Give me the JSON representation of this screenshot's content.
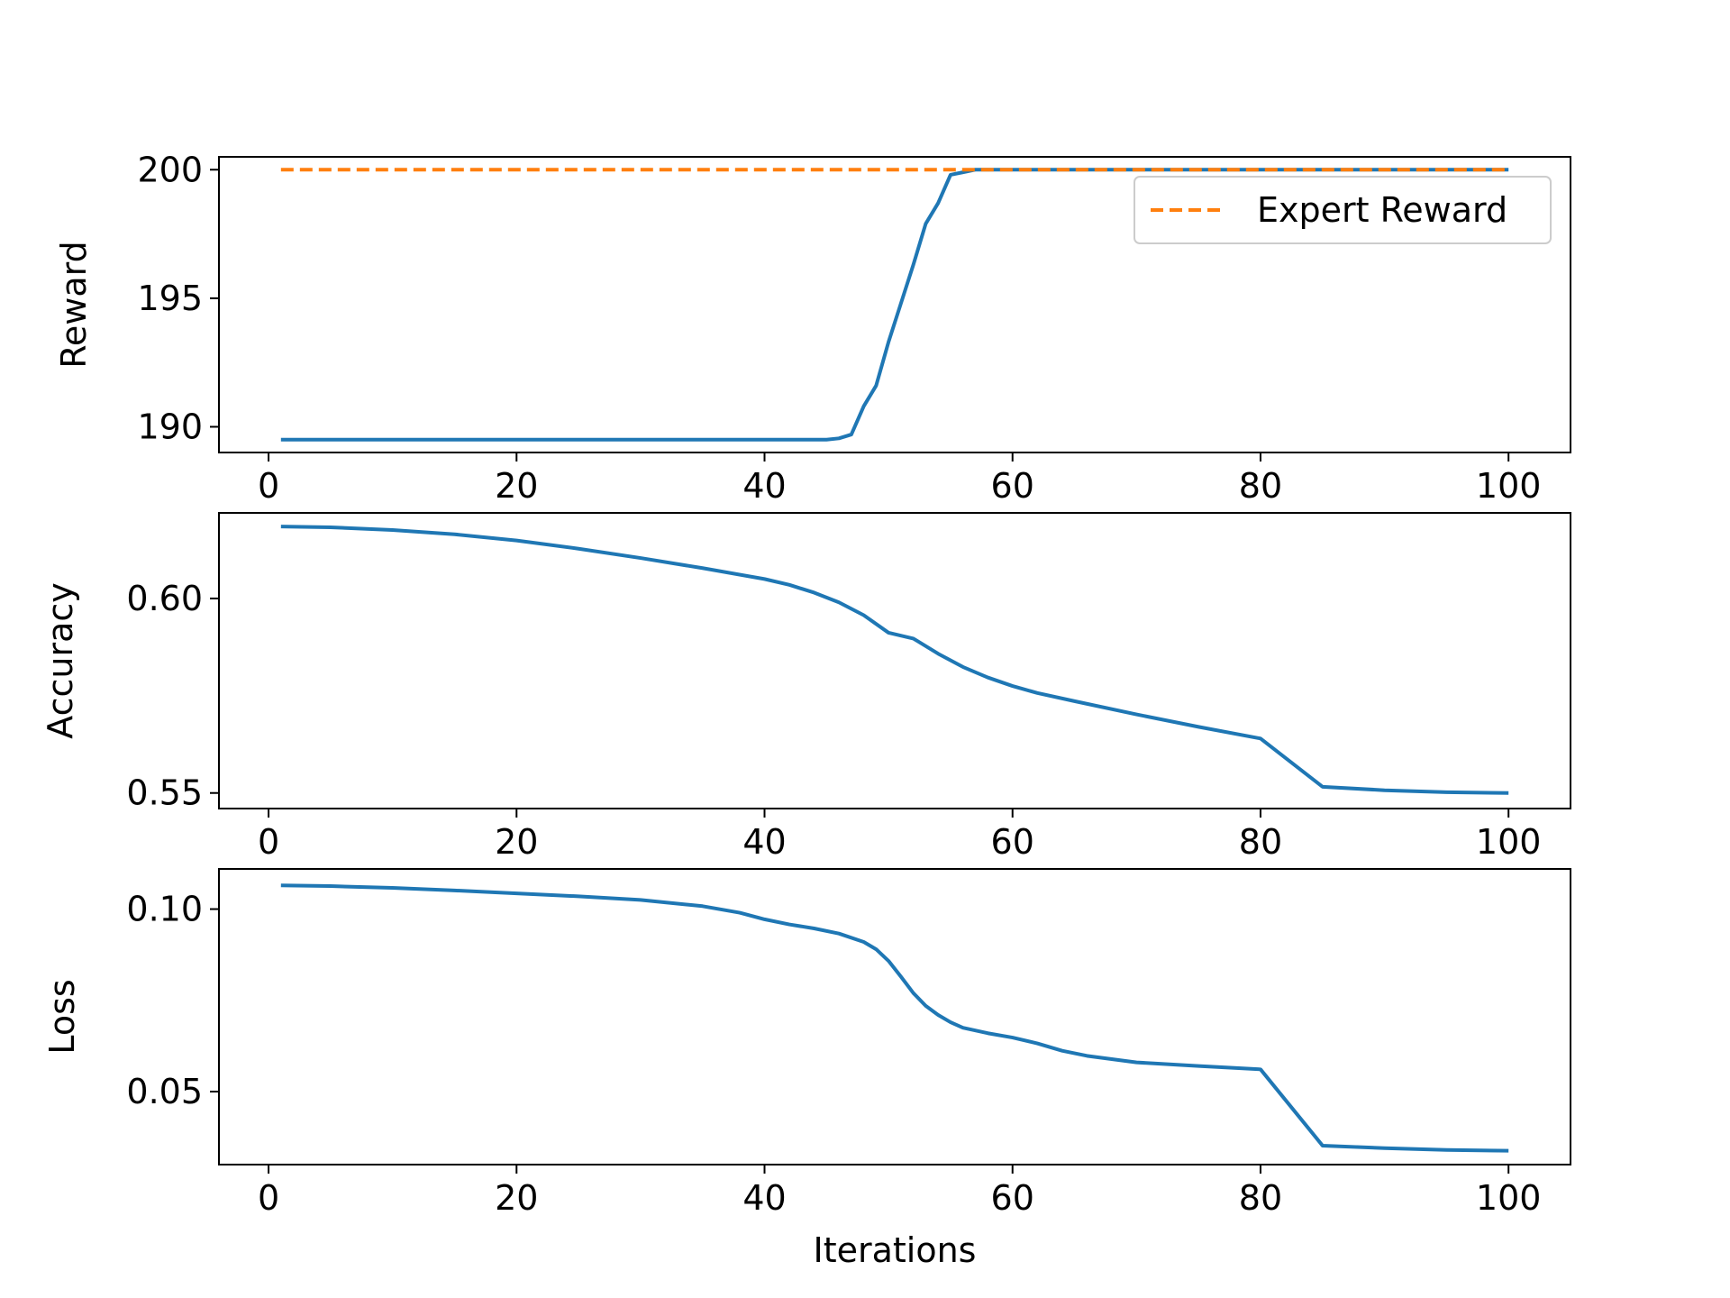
{
  "chart_data": [
    {
      "type": "line",
      "ylabel": "Reward",
      "xlim": [
        -4,
        105
      ],
      "ylim": [
        189.0,
        200.5
      ],
      "xticks": [
        0,
        20,
        40,
        60,
        80,
        100
      ],
      "xtick_labels": [
        "0",
        "20",
        "40",
        "60",
        "80",
        "100"
      ],
      "yticks": [
        190,
        195,
        200
      ],
      "ytick_labels": [
        "190",
        "195",
        "200"
      ],
      "legend_position": "upper right",
      "colors": {
        "series": "#1f77b4",
        "reference": "#ff7f0e"
      },
      "series": [
        {
          "values": {
            "x": [
              1,
              44,
              45,
              46,
              47,
              48,
              49,
              50,
              51,
              52,
              53,
              54,
              55,
              56,
              57,
              100
            ],
            "y": [
              189.5,
              189.5,
              189.5,
              189.55,
              189.7,
              190.8,
              191.6,
              193.3,
              194.8,
              196.3,
              197.9,
              198.7,
              199.8,
              199.9,
              200.0,
              200.0
            ]
          }
        },
        {
          "name": "Expert Reward",
          "style": "dashed",
          "values": {
            "x": [
              1,
              100
            ],
            "y": [
              200.0,
              200.0
            ]
          }
        }
      ]
    },
    {
      "type": "line",
      "ylabel": "Accuracy",
      "xlim": [
        -4,
        105
      ],
      "ylim": [
        0.546,
        0.622
      ],
      "xticks": [
        0,
        20,
        40,
        60,
        80,
        100
      ],
      "xtick_labels": [
        "0",
        "20",
        "40",
        "60",
        "80",
        "100"
      ],
      "yticks": [
        0.55,
        0.6
      ],
      "ytick_labels": [
        "0.55",
        "0.60"
      ],
      "colors": {
        "series": "#1f77b4"
      },
      "series": [
        {
          "values": {
            "x": [
              1,
              5,
              10,
              15,
              20,
              25,
              30,
              35,
              40,
              42,
              44,
              46,
              48,
              50,
              52,
              54,
              56,
              58,
              60,
              62,
              65,
              70,
              75,
              80,
              85,
              90,
              95,
              100
            ],
            "y": [
              0.6185,
              0.6183,
              0.6176,
              0.6165,
              0.6149,
              0.6128,
              0.6104,
              0.6078,
              0.605,
              0.6035,
              0.6015,
              0.599,
              0.5957,
              0.5912,
              0.5897,
              0.5858,
              0.5824,
              0.5797,
              0.5775,
              0.5757,
              0.5736,
              0.5702,
              0.567,
              0.564,
              0.5516,
              0.5507,
              0.5502,
              0.55
            ]
          }
        }
      ]
    },
    {
      "type": "line",
      "ylabel": "Loss",
      "xlabel": "Iterations",
      "xlim": [
        -4,
        105
      ],
      "ylim": [
        0.03,
        0.111
      ],
      "xticks": [
        0,
        20,
        40,
        60,
        80,
        100
      ],
      "xtick_labels": [
        "0",
        "20",
        "40",
        "60",
        "80",
        "100"
      ],
      "yticks": [
        0.05,
        0.1
      ],
      "ytick_labels": [
        "0.05",
        "0.10"
      ],
      "colors": {
        "series": "#1f77b4"
      },
      "series": [
        {
          "values": {
            "x": [
              1,
              5,
              10,
              15,
              20,
              25,
              30,
              35,
              38,
              40,
              42,
              44,
              46,
              48,
              49,
              50,
              51,
              52,
              53,
              54,
              55,
              56,
              58,
              60,
              62,
              64,
              66,
              70,
              75,
              80,
              85,
              90,
              95,
              100
            ],
            "y": [
              0.1065,
              0.1063,
              0.1058,
              0.1051,
              0.1043,
              0.1035,
              0.1025,
              0.1008,
              0.099,
              0.0972,
              0.0958,
              0.0947,
              0.0933,
              0.091,
              0.089,
              0.0858,
              0.0815,
              0.077,
              0.0735,
              0.071,
              0.069,
              0.0675,
              0.066,
              0.0648,
              0.0632,
              0.0612,
              0.0598,
              0.058,
              0.057,
              0.0561,
              0.0352,
              0.0345,
              0.034,
              0.0338
            ]
          }
        }
      ]
    }
  ]
}
